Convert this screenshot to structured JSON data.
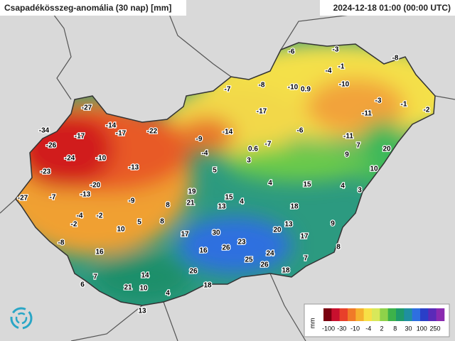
{
  "header": {
    "title": "Csapadékösszeg-anomália (30 nap) [mm]",
    "timestamp": "2024-12-18 01:00 (00:00 UTC)"
  },
  "stations": [
    -27,
    -34,
    -17,
    -14,
    -17,
    -22,
    -26,
    -24,
    -10,
    -13,
    -23,
    -20,
    -13,
    -7,
    -27,
    -9,
    -4,
    -2,
    -2,
    -8,
    -7,
    -8,
    -17,
    -10,
    0.9,
    -6,
    -3,
    -4,
    -1,
    -10,
    -8,
    -3,
    -1,
    -2,
    -11,
    -6,
    -11,
    -14,
    -9,
    -4,
    -7,
    0.6,
    3,
    5,
    9,
    7,
    20,
    10,
    4,
    15,
    4,
    3,
    19,
    15,
    4,
    21,
    13,
    8,
    18,
    8,
    5,
    10,
    13,
    9,
    17,
    30,
    20,
    17,
    23,
    16,
    16,
    26,
    8,
    24,
    7,
    25,
    26,
    26,
    18,
    7,
    14,
    6,
    21,
    10,
    18,
    4,
    13
  ],
  "legend": {
    "unit": "mm",
    "colors": [
      "#7a0010",
      "#c8102e",
      "#e8402a",
      "#f07a28",
      "#f5b12e",
      "#f7e046",
      "#d8e85a",
      "#8fd24a",
      "#3db24a",
      "#1f9a6a",
      "#1f8fa0",
      "#2e6fe0",
      "#2a3fc8",
      "#5a2ab8",
      "#8a2ab0"
    ],
    "labels": [
      "-100",
      "-30",
      "-10",
      "-4",
      "2",
      "8",
      "30",
      "100",
      "250"
    ]
  }
}
